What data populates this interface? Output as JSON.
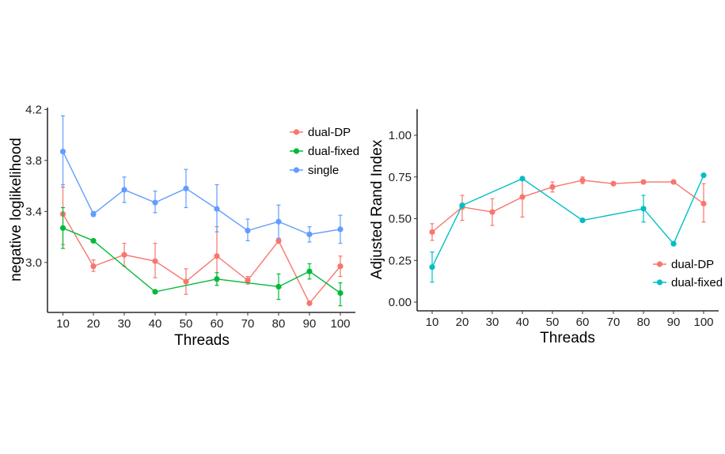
{
  "chart_data": [
    {
      "type": "line",
      "xlabel": "Threads",
      "ylabel": "negative loglikelihood",
      "x": [
        10,
        20,
        30,
        40,
        50,
        60,
        70,
        80,
        90,
        100
      ],
      "x_ticks": [
        "10",
        "20",
        "30",
        "40",
        "50",
        "60",
        "70",
        "80",
        "90",
        "100"
      ],
      "ylim": [
        2.58,
        4.22
      ],
      "y_ticks": [
        3.0,
        3.4,
        3.8,
        4.2
      ],
      "y_tick_labels": [
        "3.0",
        "3.4",
        "3.8",
        "4.2"
      ],
      "grid": false,
      "legend_position": "top-right",
      "series": [
        {
          "name": "dual-DP",
          "color": "#F8766D",
          "values": [
            3.38,
            2.97,
            3.06,
            3.01,
            2.85,
            3.05,
            2.86,
            3.17,
            2.68,
            2.97
          ],
          "err_low": [
            3.14,
            2.93,
            2.97,
            2.88,
            2.75,
            2.82,
            2.83,
            3.15,
            2.68,
            2.89
          ],
          "err_high": [
            3.61,
            3.02,
            3.15,
            3.15,
            2.95,
            3.28,
            2.89,
            3.18,
            2.68,
            3.05
          ]
        },
        {
          "name": "dual-fixed",
          "color": "#00BA38",
          "values": [
            3.27,
            3.17,
            null,
            2.77,
            null,
            2.87,
            null,
            2.81,
            2.93,
            2.76
          ],
          "err_low": [
            3.11,
            3.17,
            null,
            2.77,
            null,
            2.82,
            null,
            2.71,
            2.87,
            2.66
          ],
          "err_high": [
            3.43,
            3.17,
            null,
            2.77,
            null,
            2.92,
            null,
            2.91,
            2.99,
            2.84
          ]
        },
        {
          "name": "single",
          "color": "#619CFF",
          "values": [
            3.87,
            3.38,
            3.57,
            3.47,
            3.58,
            3.42,
            3.25,
            3.32,
            3.22,
            3.26
          ],
          "err_low": [
            3.59,
            3.36,
            3.47,
            3.39,
            3.43,
            3.24,
            3.17,
            3.19,
            3.16,
            3.15
          ],
          "err_high": [
            4.15,
            3.4,
            3.67,
            3.56,
            3.73,
            3.61,
            3.34,
            3.45,
            3.28,
            3.37
          ]
        }
      ]
    },
    {
      "type": "line",
      "xlabel": "Threads",
      "ylabel": "Adjusted Rand Index",
      "x": [
        10,
        20,
        30,
        40,
        50,
        60,
        70,
        80,
        90,
        100
      ],
      "x_ticks": [
        "10",
        "20",
        "30",
        "40",
        "50",
        "60",
        "70",
        "80",
        "90",
        "100"
      ],
      "ylim": [
        -0.05,
        1.15
      ],
      "y_ticks": [
        0.0,
        0.25,
        0.5,
        0.75,
        1.0
      ],
      "y_tick_labels": [
        "0.00",
        "0.25",
        "0.50",
        "0.75",
        "1.00"
      ],
      "grid": false,
      "legend_position": "right",
      "series": [
        {
          "name": "dual-DP",
          "color": "#F8766D",
          "values": [
            0.42,
            0.57,
            0.54,
            0.63,
            0.69,
            0.73,
            0.71,
            0.72,
            0.72,
            0.59
          ],
          "err_low": [
            0.37,
            0.49,
            0.46,
            0.51,
            0.66,
            0.71,
            0.7,
            0.71,
            0.71,
            0.48
          ],
          "err_high": [
            0.47,
            0.64,
            0.62,
            0.75,
            0.72,
            0.75,
            0.72,
            0.73,
            0.73,
            0.71
          ]
        },
        {
          "name": "dual-fixed",
          "color": "#00BFC4",
          "values": [
            0.21,
            0.58,
            null,
            0.74,
            null,
            0.49,
            null,
            0.56,
            0.35,
            0.76
          ],
          "err_low": [
            0.12,
            0.58,
            null,
            0.74,
            null,
            0.49,
            null,
            0.48,
            0.35,
            0.76
          ],
          "err_high": [
            0.3,
            0.58,
            null,
            0.74,
            null,
            0.49,
            null,
            0.64,
            0.35,
            0.76
          ]
        }
      ]
    }
  ]
}
